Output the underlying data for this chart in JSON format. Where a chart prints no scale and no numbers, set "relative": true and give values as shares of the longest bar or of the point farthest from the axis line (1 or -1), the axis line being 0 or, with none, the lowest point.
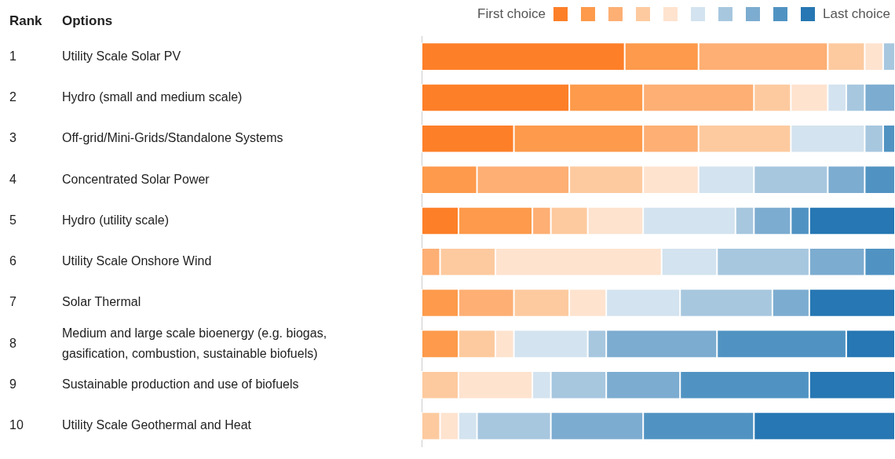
{
  "chart_data": {
    "type": "bar",
    "orientation": "horizontal",
    "stacked": true,
    "relative": true,
    "legend": "top right",
    "ylabel": "Options",
    "categories": [
      "Utility Scale Solar PV",
      "Hydro (small and medium scale)",
      "Off-grid/Mini-Grids/Standalone Systems",
      "Concentrated Solar Power",
      "Hydro (utility scale)",
      "Utility Scale Onshore Wind",
      "Solar Thermal",
      "Medium and large scale bioenergy (e.g. biogas, gasification, combustion, sustainable biofuels)",
      "Sustainable production and use of biofuels",
      "Utility Scale Geothermal and Heat"
    ],
    "annotations": [
      "Rank",
      "1",
      "2",
      "3",
      "4",
      "5",
      "6",
      "7",
      "8",
      "9",
      "10"
    ],
    "series": [
      {
        "name": "First choice",
        "color": "#fd7f28",
        "values": [
          0.429,
          0.312,
          0.195,
          0,
          0.078,
          0,
          0,
          0,
          0,
          0
        ]
      },
      {
        "color": "#fd9a4b",
        "values": [
          0.156,
          0.156,
          0.273,
          0.117,
          0.156,
          0,
          0.078,
          0.078,
          0,
          0
        ]
      },
      {
        "color": "#fdaf74",
        "values": [
          0.273,
          0.234,
          0.117,
          0.195,
          0.039,
          0.039,
          0.117,
          0,
          0,
          0
        ]
      },
      {
        "color": "#fdca9f",
        "values": [
          0.078,
          0.078,
          0.195,
          0.156,
          0.078,
          0.117,
          0.117,
          0.078,
          0.078,
          0.039
        ]
      },
      {
        "color": "#fee3cf",
        "values": [
          0.039,
          0.078,
          0,
          0.117,
          0.117,
          0.351,
          0.078,
          0.039,
          0.156,
          0.039
        ]
      },
      {
        "color": "#d3e3ef",
        "values": [
          0,
          0.039,
          0.156,
          0.117,
          0.195,
          0.117,
          0.156,
          0.156,
          0.039,
          0.039
        ]
      },
      {
        "color": "#a7c7df",
        "values": [
          0.025,
          0.039,
          0.039,
          0.156,
          0.039,
          0.195,
          0.195,
          0.039,
          0.117,
          0.156
        ]
      },
      {
        "color": "#7cacd0",
        "values": [
          0,
          0.064,
          0,
          0.078,
          0.078,
          0.117,
          0.078,
          0.234,
          0.156,
          0.195
        ]
      },
      {
        "color": "#5093c2",
        "values": [
          0,
          0,
          0.025,
          0.064,
          0.039,
          0.064,
          0,
          0.273,
          0.273,
          0.234
        ]
      },
      {
        "name": "Last choice",
        "color": "#2677b3",
        "values": [
          0,
          0,
          0,
          0,
          0.181,
          0,
          0.181,
          0.103,
          0.181,
          0.298
        ]
      }
    ]
  }
}
